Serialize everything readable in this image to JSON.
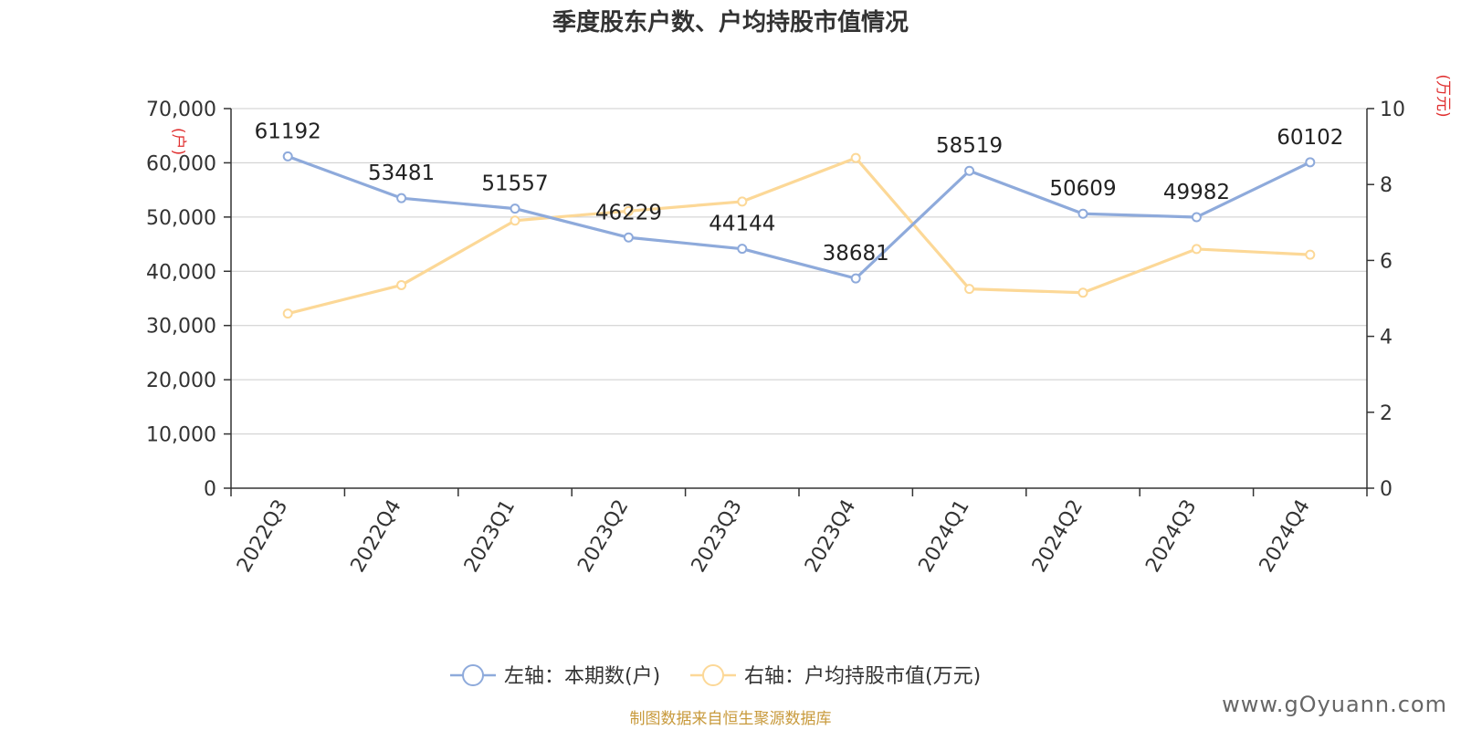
{
  "chart_data": {
    "type": "line",
    "title": "季度股东户数、户均持股市值情况",
    "categories": [
      "2022Q3",
      "2022Q4",
      "2023Q1",
      "2023Q2",
      "2023Q3",
      "2023Q4",
      "2024Q1",
      "2024Q2",
      "2024Q3",
      "2024Q4"
    ],
    "y_left": {
      "label": "(户)",
      "ylim": [
        0,
        70000
      ],
      "ticks": [
        "0",
        "10,000",
        "20,000",
        "30,000",
        "40,000",
        "50,000",
        "60,000",
        "70,000"
      ],
      "tick_values": [
        0,
        10000,
        20000,
        30000,
        40000,
        50000,
        60000,
        70000
      ]
    },
    "y_right": {
      "label": "(万元)",
      "ylim": [
        0,
        10
      ],
      "ticks": [
        "0",
        "2",
        "4",
        "6",
        "8",
        "10"
      ],
      "tick_values": [
        0,
        2,
        4,
        6,
        8,
        10
      ]
    },
    "series": [
      {
        "name": "左轴：本期数(户)",
        "axis": "left",
        "color": "#8eaadb",
        "values": [
          61192,
          53481,
          51557,
          46229,
          44144,
          38681,
          58519,
          50609,
          49982,
          60102
        ],
        "labels": [
          "61192",
          "53481",
          "51557",
          "46229",
          "44144",
          "38681",
          "58519",
          "50609",
          "49982",
          "60102"
        ]
      },
      {
        "name": "右轴：户均持股市值(万元)",
        "axis": "right",
        "color": "#fcd897",
        "values": [
          4.6,
          5.35,
          7.05,
          7.3,
          7.55,
          8.7,
          5.25,
          5.15,
          6.3,
          6.15
        ]
      }
    ],
    "grid": true,
    "legend_position": "bottom-center"
  },
  "footer": {
    "source": "制图数据来自恒生聚源数据库",
    "watermark": "www.gOyuann.com"
  }
}
